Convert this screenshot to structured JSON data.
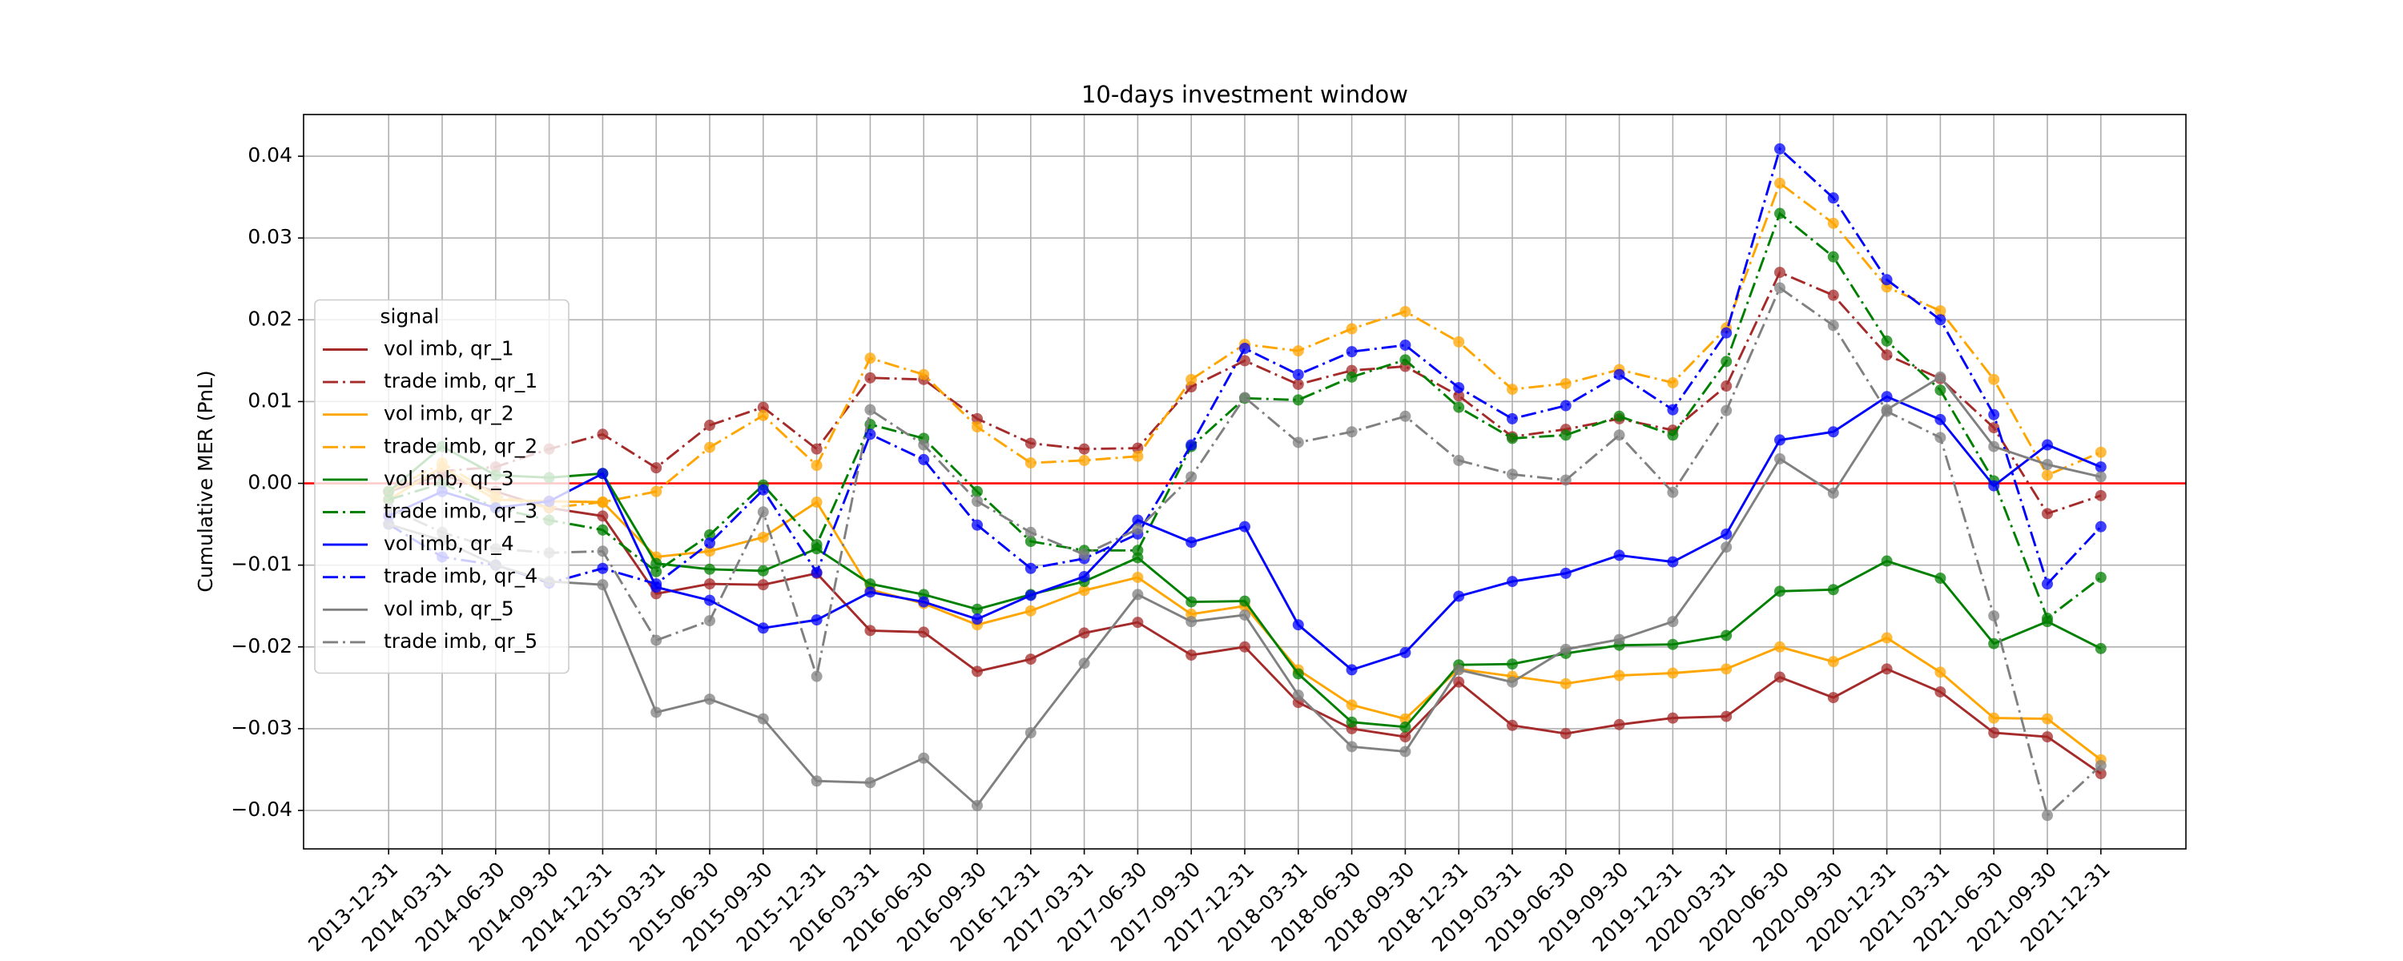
{
  "chart_data": {
    "type": "line",
    "title": "10-days investment window",
    "y_label": "Cumulative MER (PnL)",
    "categories": [
      "2013-12-31",
      "2014-03-31",
      "2014-06-30",
      "2014-09-30",
      "2014-12-31",
      "2015-03-31",
      "2015-06-30",
      "2015-09-30",
      "2015-12-31",
      "2016-03-31",
      "2016-06-30",
      "2016-09-30",
      "2016-12-31",
      "2017-03-31",
      "2017-06-30",
      "2017-09-30",
      "2017-12-31",
      "2018-03-31",
      "2018-06-30",
      "2018-09-30",
      "2018-12-31",
      "2019-03-31",
      "2019-06-30",
      "2019-09-30",
      "2019-12-31",
      "2020-03-31",
      "2020-06-30",
      "2020-09-30",
      "2020-12-31",
      "2021-03-31",
      "2021-06-30",
      "2021-09-30",
      "2021-12-31"
    ],
    "ylim": [
      -0.0447,
      0.0451
    ],
    "yticks": [
      {
        "value": -0.04,
        "label": "−0.04"
      },
      {
        "value": -0.03,
        "label": "−0.03"
      },
      {
        "value": -0.02,
        "label": "−0.02"
      },
      {
        "value": -0.01,
        "label": "−0.01"
      },
      {
        "value": 0,
        "label": "0.00"
      },
      0.01,
      0.02,
      0.03,
      0.04
    ],
    "grid": true,
    "hlines": [
      {
        "value": 0,
        "color": "red"
      }
    ],
    "legend_title": "signal",
    "legend_loc": "center left",
    "series": [
      {
        "name": "vol imb, qr_1",
        "color": "#a52a2a",
        "linestyle": "solid",
        "values": [
          -0.001,
          0.001,
          -0.001,
          -0.003,
          -0.004,
          -0.0135,
          -0.0123,
          -0.0124,
          -0.011,
          -0.018,
          -0.0182,
          -0.023,
          -0.0215,
          -0.0183,
          -0.017,
          -0.021,
          -0.02,
          -0.0268,
          -0.03,
          -0.031,
          -0.0243,
          -0.0296,
          -0.0306,
          -0.0295,
          -0.0287,
          -0.0285,
          -0.0237,
          -0.0262,
          -0.0227,
          -0.0255,
          -0.0305,
          -0.031,
          -0.0355
        ]
      },
      {
        "name": "trade imb, qr_1",
        "color": "#a52a2a",
        "linestyle": "dashdot",
        "values": [
          -0.001,
          0.0015,
          0.002,
          0.0042,
          0.006,
          0.0019,
          0.0071,
          0.0093,
          0.0042,
          0.0129,
          0.0127,
          0.0079,
          0.0049,
          0.0042,
          0.0043,
          0.0118,
          0.015,
          0.0121,
          0.0138,
          0.0143,
          0.0107,
          0.0057,
          0.0066,
          0.0079,
          0.0065,
          0.0119,
          0.0258,
          0.023,
          0.0157,
          0.0128,
          0.0068,
          -0.0037,
          -0.0015
        ]
      },
      {
        "name": "vol imb, qr_2",
        "color": "orange",
        "linestyle": "solid",
        "values": [
          -0.002,
          0.002,
          -0.002,
          -0.0022,
          -0.0023,
          -0.009,
          -0.0083,
          -0.0066,
          -0.0023,
          -0.013,
          -0.0147,
          -0.0173,
          -0.0156,
          -0.0131,
          -0.0115,
          -0.016,
          -0.015,
          -0.0228,
          -0.0271,
          -0.0288,
          -0.0227,
          -0.0236,
          -0.0245,
          -0.0235,
          -0.0232,
          -0.0227,
          -0.02,
          -0.0218,
          -0.0189,
          -0.0231,
          -0.0287,
          -0.0288,
          -0.0338
        ]
      },
      {
        "name": "trade imb, qr_2",
        "color": "orange",
        "linestyle": "dashdot",
        "values": [
          -0.001,
          0.0025,
          -0.0015,
          -0.003,
          -0.0023,
          -0.001,
          0.0044,
          0.0083,
          0.0022,
          0.0153,
          0.0133,
          0.0069,
          0.0025,
          0.0028,
          0.0033,
          0.0127,
          0.017,
          0.0162,
          0.0189,
          0.021,
          0.0173,
          0.0115,
          0.0122,
          0.0139,
          0.0123,
          0.019,
          0.0367,
          0.0318,
          0.024,
          0.0211,
          0.0127,
          0.001,
          0.0038
        ]
      },
      {
        "name": "vol imb, qr_3",
        "color": "green",
        "linestyle": "solid",
        "values": [
          -0.001,
          0.0045,
          0.001,
          0.0007,
          0.0012,
          -0.0098,
          -0.0105,
          -0.0107,
          -0.008,
          -0.0123,
          -0.0136,
          -0.0154,
          -0.0136,
          -0.012,
          -0.0091,
          -0.0145,
          -0.0144,
          -0.0233,
          -0.0292,
          -0.0298,
          -0.0222,
          -0.0221,
          -0.0208,
          -0.0198,
          -0.0197,
          -0.0186,
          -0.0132,
          -0.013,
          -0.0095,
          -0.0116,
          -0.0196,
          -0.0169,
          -0.0202
        ]
      },
      {
        "name": "trade imb, qr_3",
        "color": "green",
        "linestyle": "dashdot",
        "values": [
          -0.002,
          0.0,
          -0.003,
          -0.0045,
          -0.0057,
          -0.0108,
          -0.0063,
          -0.0002,
          -0.0075,
          0.0072,
          0.0055,
          -0.001,
          -0.0071,
          -0.0082,
          -0.0082,
          0.0045,
          0.0104,
          0.0102,
          0.013,
          0.0151,
          0.0093,
          0.0055,
          0.0059,
          0.0082,
          0.0059,
          0.0149,
          0.033,
          0.0277,
          0.0174,
          0.0114,
          0.0003,
          -0.0165,
          -0.0115
        ]
      },
      {
        "name": "vol imb, qr_4",
        "color": "blue",
        "linestyle": "solid",
        "values": [
          -0.004,
          -0.001,
          -0.003,
          -0.0022,
          0.0012,
          -0.0127,
          -0.0143,
          -0.0177,
          -0.0167,
          -0.0133,
          -0.0145,
          -0.0166,
          -0.0137,
          -0.0114,
          -0.0045,
          -0.0072,
          -0.0053,
          -0.0173,
          -0.0228,
          -0.0207,
          -0.0138,
          -0.012,
          -0.011,
          -0.0088,
          -0.0096,
          -0.0062,
          0.0053,
          0.0063,
          0.0106,
          0.0078,
          -0.0003,
          0.0047,
          0.002
        ]
      },
      {
        "name": "trade imb, qr_4",
        "color": "blue",
        "linestyle": "dashdot",
        "values": [
          -0.005,
          -0.009,
          -0.01,
          -0.0122,
          -0.0104,
          -0.0123,
          -0.0073,
          -0.0008,
          -0.0109,
          0.006,
          0.0029,
          -0.0051,
          -0.0104,
          -0.0092,
          -0.0062,
          0.0047,
          0.0165,
          0.0133,
          0.0161,
          0.0169,
          0.0117,
          0.0079,
          0.0095,
          0.0133,
          0.009,
          0.0184,
          0.0409,
          0.0349,
          0.0249,
          0.02,
          0.0084,
          -0.0123,
          -0.0053
        ]
      },
      {
        "name": "vol imb, qr_5",
        "color": "gray",
        "linestyle": "solid",
        "values": [
          -0.005,
          -0.007,
          -0.01,
          -0.012,
          -0.0124,
          -0.028,
          -0.0264,
          -0.0288,
          -0.0364,
          -0.0366,
          -0.0336,
          -0.0394,
          -0.0305,
          -0.022,
          -0.0136,
          -0.0169,
          -0.0161,
          -0.0259,
          -0.0322,
          -0.0328,
          -0.0228,
          -0.0243,
          -0.0203,
          -0.0191,
          -0.0169,
          -0.0078,
          0.003,
          -0.0012,
          0.009,
          0.013,
          0.0045,
          0.0023,
          0.0008
        ]
      },
      {
        "name": "trade imb, qr_5",
        "color": "gray",
        "linestyle": "dashdot",
        "values": [
          -0.003,
          -0.006,
          -0.008,
          -0.0085,
          -0.0083,
          -0.0192,
          -0.0168,
          -0.0035,
          -0.0236,
          0.009,
          0.0047,
          -0.0022,
          -0.006,
          -0.0087,
          -0.0056,
          0.0008,
          0.0105,
          0.005,
          0.0063,
          0.0082,
          0.0028,
          0.0011,
          0.0004,
          0.0059,
          -0.0011,
          0.0089,
          0.0239,
          0.0193,
          0.0088,
          0.0056,
          -0.0162,
          -0.0406,
          -0.0345
        ]
      }
    ]
  }
}
